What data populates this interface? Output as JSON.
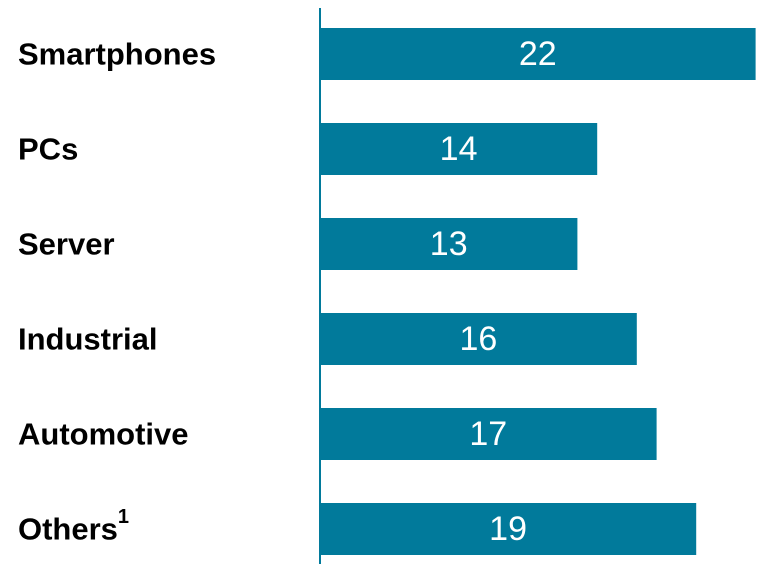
{
  "chart_data": {
    "type": "bar",
    "orientation": "horizontal",
    "categories": [
      "Smartphones",
      "PCs",
      "Server",
      "Industrial",
      "Automotive",
      "Others"
    ],
    "values": [
      22,
      14,
      13,
      16,
      17,
      19
    ],
    "category_superscripts": [
      "",
      "",
      "",
      "",
      "",
      "1"
    ],
    "data_labels": [
      "22",
      "14",
      "13",
      "16",
      "17",
      "19"
    ],
    "bar_color": "#017A9B",
    "label_text_color": "#000000",
    "value_text_color": "#ffffff",
    "axis_color": "#017A9B",
    "xlim": [
      0,
      22
    ],
    "grid": false,
    "legend": "none"
  }
}
